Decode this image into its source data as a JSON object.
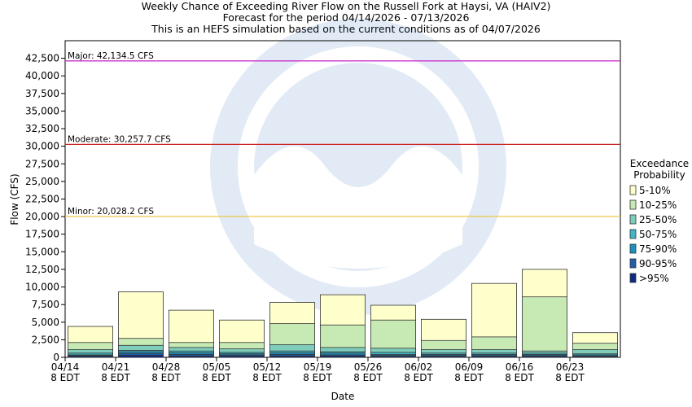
{
  "chart_data": {
    "type": "bar",
    "stacked": true,
    "title": [
      "Weekly Chance of Exceeding River Flow on the Russell Fork at Haysi, VA (HAIV2)",
      "Forecast for the period 04/14/2026 - 07/13/2026",
      "This is an HEFS simulation based on the current conditions as of 04/07/2026"
    ],
    "xlabel": "Date",
    "ylabel": "Flow (CFS)",
    "ylim": [
      0,
      45000
    ],
    "yticks": [
      0,
      2500,
      5000,
      7500,
      10000,
      12500,
      15000,
      17500,
      20000,
      22500,
      25000,
      27500,
      30000,
      32500,
      35000,
      37500,
      40000,
      42500
    ],
    "ytick_labels": [
      "0",
      "2,500",
      "5,000",
      "7,500",
      "10,000",
      "12,500",
      "15,000",
      "17,500",
      "20,000",
      "22,500",
      "25,000",
      "27,500",
      "30,000",
      "32,500",
      "35,000",
      "37,500",
      "40,000",
      "42,500"
    ],
    "categories": [
      "04/14\n8 EDT",
      "04/21\n8 EDT",
      "04/28\n8 EDT",
      "05/05\n8 EDT",
      "05/12\n8 EDT",
      "05/19\n8 EDT",
      "05/26\n8 EDT",
      "06/02\n8 EDT",
      "06/09\n8 EDT",
      "06/16\n8 EDT",
      "06/23\n8 EDT"
    ],
    "legend_title": [
      "Exceedance",
      "Probability"
    ],
    "legend_placement": "right",
    "series": [
      {
        "name": "5-10%",
        "color": "#ffffcc",
        "values": [
          4400,
          9300,
          6700,
          5300,
          7800,
          8900,
          7400,
          5400,
          10500,
          12500,
          3500
        ]
      },
      {
        "name": "10-25%",
        "color": "#c7e9b4",
        "values": [
          2100,
          2700,
          2100,
          2100,
          4800,
          4600,
          5300,
          2400,
          2900,
          8600,
          2000
        ]
      },
      {
        "name": "25-50%",
        "color": "#7fcdbb",
        "values": [
          1100,
          1700,
          1400,
          1200,
          1800,
          1400,
          1300,
          1100,
          1100,
          900,
          1100
        ]
      },
      {
        "name": "50-75%",
        "color": "#41b6c4",
        "values": [
          600,
          1000,
          900,
          700,
          900,
          800,
          700,
          600,
          600,
          600,
          500
        ]
      },
      {
        "name": "75-90%",
        "color": "#1d91c0",
        "values": [
          350,
          800,
          650,
          500,
          650,
          600,
          400,
          400,
          400,
          400,
          350
        ]
      },
      {
        "name": "90-95%",
        "color": "#225ea8",
        "values": [
          250,
          550,
          400,
          350,
          400,
          350,
          250,
          250,
          250,
          250,
          200
        ]
      },
      {
        "name": ">95%",
        "color": "#0c2c84",
        "values": [
          150,
          300,
          200,
          200,
          200,
          200,
          150,
          150,
          150,
          150,
          100
        ]
      }
    ],
    "thresholds": [
      {
        "label": "Major: 42,134.5 CFS",
        "value": 42134.5,
        "color": "#cc33cc"
      },
      {
        "label": "Moderate: 30,257.7 CFS",
        "value": 30257.7,
        "color": "#cc2222"
      },
      {
        "label": "Minor: 20,028.2 CFS",
        "value": 20028.2,
        "color": "#e8c84a"
      }
    ],
    "grid": false
  }
}
